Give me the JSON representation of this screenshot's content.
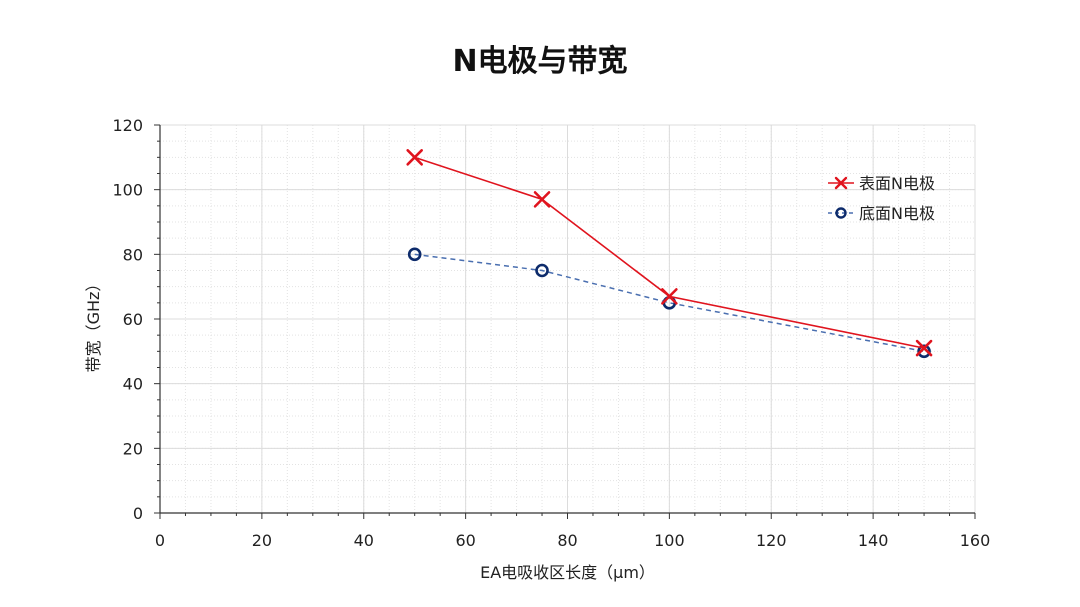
{
  "chart_data": {
    "type": "line",
    "title": "N电极与带宽",
    "xlabel": "EA电吸收区长度（μm）",
    "ylabel": "带宽（GHz）",
    "xlim": [
      0,
      160
    ],
    "ylim": [
      0,
      120
    ],
    "xticks": [
      0,
      20,
      40,
      60,
      80,
      100,
      120,
      140,
      160
    ],
    "yticks": [
      0,
      20,
      40,
      60,
      80,
      100,
      120
    ],
    "grid": true,
    "legend_position": "top-right",
    "series": [
      {
        "name": "表面N电极",
        "color": "#e0141e",
        "marker": "x",
        "line_style": "solid",
        "x": [
          50,
          75,
          100,
          150
        ],
        "y": [
          110,
          97,
          67,
          51
        ]
      },
      {
        "name": "底面N电极",
        "color": "#4a6fb0",
        "marker_color": "#0d2b6b",
        "marker": "circle",
        "line_style": "dashed",
        "x": [
          50,
          75,
          100,
          150
        ],
        "y": [
          80,
          75,
          65,
          50
        ]
      }
    ]
  }
}
